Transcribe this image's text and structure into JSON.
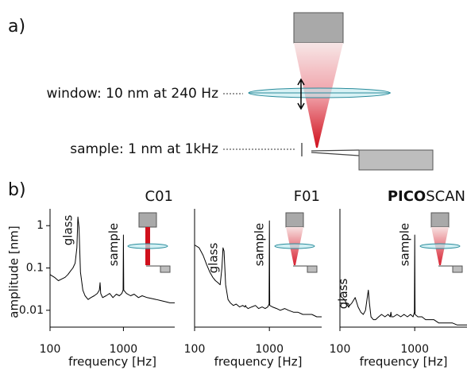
{
  "panel_a": {
    "label": "a)",
    "window": "window: 10 nm at 240 Hz",
    "sample": "sample: 1 nm at 1kHz"
  },
  "panel_b": {
    "label": "b)"
  },
  "chart_data": [
    {
      "type": "line",
      "title": "C01",
      "xlabel": "frequency [Hz]",
      "ylabel": "amplitude [nm]",
      "log_x": true,
      "log_y": true,
      "color": "#000000",
      "xlim": [
        100,
        5000
      ],
      "ylim": [
        0.004,
        2.5
      ],
      "xticks": [
        100,
        1000
      ],
      "yticks": [
        0.01,
        0.1,
        1
      ],
      "annotations": [
        {
          "text": "glass",
          "x": 240
        },
        {
          "text": "sample",
          "x": 1000
        }
      ],
      "x": [
        100,
        115,
        130,
        145,
        160,
        175,
        190,
        205,
        220,
        232,
        240,
        248,
        260,
        280,
        300,
        330,
        360,
        400,
        440,
        470,
        480,
        490,
        520,
        580,
        650,
        720,
        800,
        880,
        950,
        990,
        1000,
        1010,
        1100,
        1250,
        1400,
        1600,
        1800,
        2100,
        2400,
        2800,
        3200,
        3700,
        4300,
        5000
      ],
      "values": [
        0.07,
        0.06,
        0.05,
        0.055,
        0.06,
        0.07,
        0.085,
        0.1,
        0.13,
        0.3,
        1.6,
        0.9,
        0.08,
        0.03,
        0.022,
        0.018,
        0.02,
        0.022,
        0.025,
        0.03,
        0.045,
        0.025,
        0.02,
        0.022,
        0.025,
        0.02,
        0.024,
        0.022,
        0.025,
        0.03,
        0.6,
        0.03,
        0.025,
        0.022,
        0.024,
        0.02,
        0.022,
        0.02,
        0.019,
        0.018,
        0.017,
        0.016,
        0.015,
        0.015
      ]
    },
    {
      "type": "line",
      "title": "F01",
      "xlabel": "frequency [Hz]",
      "log_x": true,
      "log_y": true,
      "color": "#000000",
      "xlim": [
        100,
        5000
      ],
      "ylim": [
        0.004,
        2.5
      ],
      "xticks": [
        100,
        1000
      ],
      "annotations": [
        {
          "text": "glass",
          "x": 240
        },
        {
          "text": "sample",
          "x": 1000
        }
      ],
      "x": [
        100,
        115,
        130,
        145,
        160,
        175,
        190,
        205,
        220,
        232,
        240,
        248,
        260,
        280,
        300,
        330,
        360,
        400,
        440,
        470,
        480,
        490,
        520,
        580,
        650,
        720,
        800,
        880,
        950,
        990,
        1000,
        1010,
        1100,
        1250,
        1400,
        1600,
        1800,
        2100,
        2400,
        2800,
        3200,
        3700,
        4300,
        5000
      ],
      "values": [
        0.35,
        0.3,
        0.2,
        0.12,
        0.08,
        0.06,
        0.05,
        0.045,
        0.04,
        0.1,
        0.3,
        0.25,
        0.04,
        0.018,
        0.015,
        0.013,
        0.014,
        0.012,
        0.013,
        0.012,
        0.013,
        0.012,
        0.011,
        0.012,
        0.013,
        0.011,
        0.012,
        0.011,
        0.012,
        0.014,
        1.3,
        0.013,
        0.012,
        0.011,
        0.01,
        0.011,
        0.01,
        0.009,
        0.009,
        0.008,
        0.008,
        0.008,
        0.007,
        0.007
      ]
    },
    {
      "type": "line",
      "title": [
        "PICO",
        "SCAN"
      ],
      "xlabel": "frequency [Hz]",
      "log_x": true,
      "log_y": true,
      "color": "#000000",
      "xlim": [
        100,
        5000
      ],
      "ylim": [
        0.004,
        2.5
      ],
      "xticks": [
        100,
        1000
      ],
      "annotations": [
        {
          "text": "glass",
          "x": 150
        },
        {
          "text": "sample",
          "x": 1000
        }
      ],
      "x": [
        100,
        115,
        130,
        145,
        160,
        175,
        190,
        205,
        220,
        232,
        240,
        248,
        260,
        280,
        300,
        330,
        360,
        400,
        440,
        470,
        480,
        490,
        520,
        580,
        650,
        720,
        800,
        880,
        950,
        990,
        1000,
        1010,
        1100,
        1250,
        1400,
        1600,
        1800,
        2100,
        2400,
        2800,
        3200,
        3700,
        4300,
        5000
      ],
      "values": [
        0.022,
        0.018,
        0.012,
        0.015,
        0.02,
        0.012,
        0.009,
        0.008,
        0.01,
        0.02,
        0.03,
        0.015,
        0.007,
        0.006,
        0.006,
        0.007,
        0.008,
        0.007,
        0.008,
        0.007,
        0.009,
        0.007,
        0.007,
        0.008,
        0.007,
        0.008,
        0.007,
        0.008,
        0.007,
        0.009,
        0.6,
        0.008,
        0.007,
        0.007,
        0.006,
        0.006,
        0.006,
        0.005,
        0.005,
        0.005,
        0.005,
        0.0045,
        0.0045,
        0.0045
      ]
    }
  ]
}
